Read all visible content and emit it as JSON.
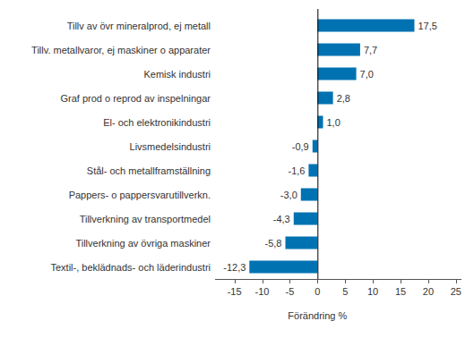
{
  "chart_data": {
    "type": "bar",
    "orientation": "horizontal",
    "x_label": "Förändring %",
    "categories": [
      "Tillv av övr mineralprod, ej metall",
      "Tillv. metallvaror, ej maskiner o apparater",
      "Kemisk industri",
      "Graf prod o reprod av inspelningar",
      "El- och elektronikindustri",
      "Livsmedelsindustri",
      "Stål- och metallframställning",
      "Pappers- o pappersvarutillverkn.",
      "Tillverkning av transportmedel",
      "Tillverkning av övriga maskiner",
      "Textil-, beklädnads- och läderindustri"
    ],
    "values": [
      17.5,
      7.7,
      7.0,
      2.8,
      1.0,
      -0.9,
      -1.6,
      -3.0,
      -4.3,
      -5.8,
      -12.3
    ],
    "value_labels": [
      "17,5",
      "7,7",
      "7,0",
      "2,8",
      "1,0",
      "-0,9",
      "-1,6",
      "-3,0",
      "-4,3",
      "-5,8",
      "-12,3"
    ],
    "data_labels": true,
    "color": "#0072b2",
    "xlim": [
      -18.5,
      26
    ],
    "xticks": [
      -15,
      -10,
      -5,
      0,
      5,
      10,
      15,
      20,
      25
    ],
    "grid": false
  }
}
